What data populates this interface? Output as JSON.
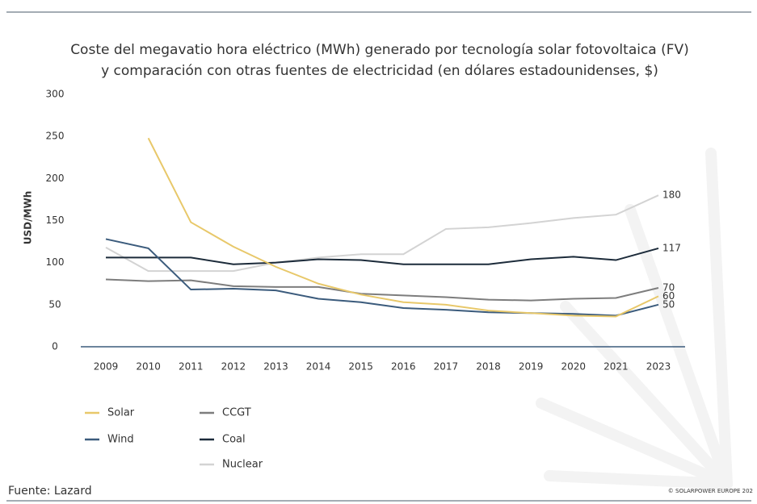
{
  "chart_data": {
    "type": "line",
    "title": "Coste del megavatio hora eléctrico (MWh) generado por tecnología solar fotovoltaica (FV)",
    "subtitle": "y comparación con otras fuentes de electricidad (en dólares estadounidenses, $)",
    "y_label": "USD/MWh",
    "source": "Fuente: Lazard",
    "credit": "© SOLARPOWER EUROPE 202",
    "categories": [
      "2009",
      "2010",
      "2011",
      "2012",
      "2013",
      "2014",
      "2015",
      "2016",
      "2017",
      "2018",
      "2019",
      "2020",
      "2021",
      "2023"
    ],
    "ylim": [
      0,
      300
    ],
    "yticks": [
      0,
      50,
      100,
      150,
      200,
      250,
      300
    ],
    "series": [
      {
        "name": "Solar",
        "color": "#e8c86a",
        "values": [
          null,
          248,
          148,
          119,
          95,
          75,
          62,
          53,
          50,
          43,
          40,
          37,
          36,
          60
        ],
        "value_labels": [
          null,
          null,
          null,
          null,
          null,
          null,
          null,
          null,
          null,
          null,
          null,
          null,
          null,
          "60"
        ]
      },
      {
        "name": "Wind",
        "color": "#3b5b7c",
        "values": [
          128,
          117,
          68,
          69,
          67,
          57,
          53,
          46,
          44,
          41,
          40,
          39,
          37,
          50
        ],
        "value_labels": [
          null,
          null,
          null,
          null,
          null,
          null,
          null,
          null,
          null,
          null,
          null,
          null,
          null,
          "50"
        ]
      },
      {
        "name": "CCGT",
        "color": "#7d7d7d",
        "values": [
          80,
          78,
          79,
          72,
          71,
          71,
          63,
          61,
          59,
          56,
          55,
          57,
          58,
          70
        ],
        "value_labels": [
          null,
          null,
          null,
          null,
          null,
          null,
          null,
          null,
          null,
          null,
          null,
          null,
          null,
          "70"
        ]
      },
      {
        "name": "Coal",
        "color": "#1c2b3a",
        "values": [
          106,
          106,
          106,
          98,
          100,
          104,
          103,
          98,
          98,
          98,
          104,
          107,
          103,
          117
        ],
        "value_labels": [
          null,
          null,
          null,
          null,
          null,
          null,
          null,
          null,
          null,
          null,
          null,
          null,
          null,
          "117"
        ]
      },
      {
        "name": "Nuclear",
        "color": "#d3d3d3",
        "values": [
          118,
          90,
          90,
          90,
          100,
          106,
          110,
          110,
          140,
          142,
          147,
          153,
          157,
          180
        ],
        "value_labels": [
          null,
          null,
          null,
          null,
          null,
          null,
          null,
          null,
          null,
          null,
          null,
          null,
          null,
          "180"
        ]
      }
    ]
  }
}
